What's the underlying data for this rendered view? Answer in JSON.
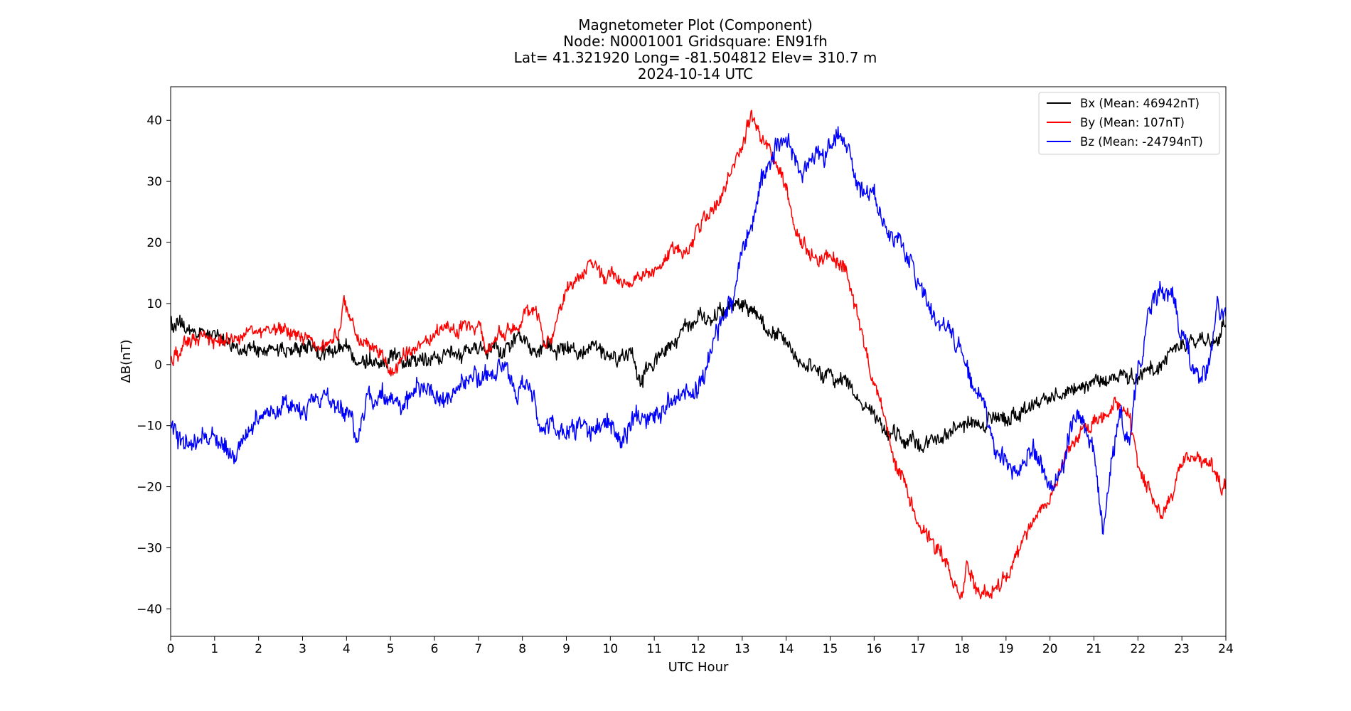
{
  "chart_data": {
    "type": "line",
    "title_lines": [
      "Magnetometer Plot (Component)",
      "Node:  N0001001     Gridsquare:  EN91fh",
      "Lat= 41.321920    Long= -81.504812    Elev= 310.7 m",
      "2024-10-14  UTC"
    ],
    "xlabel": "UTC Hour",
    "ylabel": "ΔB(nT)",
    "xlim": [
      0,
      24
    ],
    "ylim": [
      -44.5,
      45.5
    ],
    "x_ticks": [
      0,
      1,
      2,
      3,
      4,
      5,
      6,
      7,
      8,
      9,
      10,
      11,
      12,
      13,
      14,
      15,
      16,
      17,
      18,
      19,
      20,
      21,
      22,
      23,
      24
    ],
    "y_ticks": [
      -40,
      -30,
      -20,
      -10,
      0,
      10,
      20,
      30,
      40
    ],
    "y_tick_labels": [
      "−40",
      "−30",
      "−20",
      "−10",
      "0",
      "10",
      "20",
      "30",
      "40"
    ],
    "grid": false,
    "legend_position": "top-right",
    "series": [
      {
        "name": "Bx (Mean: 46942nT)",
        "color": "#000000",
        "noise": 1.2,
        "points": [
          [
            0,
            7
          ],
          [
            0.5,
            5
          ],
          [
            1,
            5
          ],
          [
            1.5,
            3
          ],
          [
            2,
            2
          ],
          [
            2.5,
            2.5
          ],
          [
            3,
            2.5
          ],
          [
            3.5,
            2.5
          ],
          [
            4,
            2
          ],
          [
            4.5,
            1
          ],
          [
            5,
            1.5
          ],
          [
            5.5,
            1.5
          ],
          [
            6,
            1
          ],
          [
            6.5,
            1.5
          ],
          [
            7,
            2
          ],
          [
            7.5,
            2.5
          ],
          [
            8,
            4.5
          ],
          [
            8.5,
            3
          ],
          [
            9,
            2
          ],
          [
            9.5,
            1.5
          ],
          [
            10,
            1.5
          ],
          [
            10.5,
            1.5
          ],
          [
            10.7,
            -2
          ],
          [
            11,
            1
          ],
          [
            11.5,
            4
          ],
          [
            12,
            7.5
          ],
          [
            12.5,
            8.5
          ],
          [
            13,
            9.5
          ],
          [
            13.3,
            9
          ],
          [
            13.5,
            6
          ],
          [
            14,
            3
          ],
          [
            14.5,
            0
          ],
          [
            15,
            -2
          ],
          [
            15.5,
            -4
          ],
          [
            16,
            -9
          ],
          [
            16.5,
            -12
          ],
          [
            17,
            -13
          ],
          [
            17.5,
            -12
          ],
          [
            18,
            -10
          ],
          [
            18.5,
            -10
          ],
          [
            19,
            -9
          ],
          [
            19.5,
            -7
          ],
          [
            20,
            -5
          ],
          [
            20.5,
            -4
          ],
          [
            21,
            -3
          ],
          [
            21.5,
            -2
          ],
          [
            21.8,
            -3
          ],
          [
            22,
            -2
          ],
          [
            22.5,
            0
          ],
          [
            23,
            3
          ],
          [
            23.5,
            4.5
          ],
          [
            23.8,
            4
          ],
          [
            24,
            7
          ]
        ]
      },
      {
        "name": "By (Mean: 107nT)",
        "color": "#ff0000",
        "noise": 1.1,
        "points": [
          [
            0,
            1
          ],
          [
            0.5,
            4
          ],
          [
            1,
            4
          ],
          [
            1.5,
            4.5
          ],
          [
            2,
            6
          ],
          [
            2.5,
            6
          ],
          [
            3,
            4.5
          ],
          [
            3.5,
            3
          ],
          [
            3.8,
            5
          ],
          [
            3.95,
            11
          ],
          [
            4.1,
            8
          ],
          [
            4.3,
            4
          ],
          [
            4.5,
            3
          ],
          [
            4.8,
            1.5
          ],
          [
            5,
            -2
          ],
          [
            5.2,
            1
          ],
          [
            5.5,
            2
          ],
          [
            6,
            5.5
          ],
          [
            6.5,
            6
          ],
          [
            7,
            6
          ],
          [
            7.2,
            3
          ],
          [
            7.5,
            5
          ],
          [
            8,
            7
          ],
          [
            8.3,
            9
          ],
          [
            8.4,
            7
          ],
          [
            8.5,
            3
          ],
          [
            8.7,
            6
          ],
          [
            9,
            12
          ],
          [
            9.5,
            16
          ],
          [
            10,
            15
          ],
          [
            10.3,
            13
          ],
          [
            10.6,
            14
          ],
          [
            11,
            16
          ],
          [
            11.4,
            19
          ],
          [
            11.8,
            18
          ],
          [
            12,
            22
          ],
          [
            12.5,
            28
          ],
          [
            13,
            36
          ],
          [
            13.2,
            41
          ],
          [
            13.5,
            36
          ],
          [
            13.8,
            32
          ],
          [
            14,
            29
          ],
          [
            14.2,
            22
          ],
          [
            14.5,
            18
          ],
          [
            15,
            17
          ],
          [
            15.3,
            16
          ],
          [
            15.5,
            12
          ],
          [
            15.8,
            3
          ],
          [
            16,
            -3
          ],
          [
            16.5,
            -16
          ],
          [
            17,
            -26
          ],
          [
            17.5,
            -30
          ],
          [
            17.8,
            -36
          ],
          [
            18,
            -38
          ],
          [
            18.1,
            -33
          ],
          [
            18.3,
            -36
          ],
          [
            18.6,
            -38
          ],
          [
            19,
            -35
          ],
          [
            19.5,
            -27
          ],
          [
            20,
            -22
          ],
          [
            20.5,
            -12
          ],
          [
            21,
            -9
          ],
          [
            21.5,
            -7
          ],
          [
            21.8,
            -8
          ],
          [
            22,
            -17
          ],
          [
            22.3,
            -21
          ],
          [
            22.5,
            -25
          ],
          [
            22.8,
            -21
          ],
          [
            23,
            -16
          ],
          [
            23.3,
            -15
          ],
          [
            23.7,
            -17
          ],
          [
            23.9,
            -21
          ],
          [
            24,
            -19
          ]
        ]
      },
      {
        "name": "Bz (Mean: -24794nT)",
        "color": "#0000ff",
        "noise": 1.5,
        "points": [
          [
            0,
            -10
          ],
          [
            0.2,
            -12
          ],
          [
            0.5,
            -14
          ],
          [
            1,
            -12
          ],
          [
            1.5,
            -15
          ],
          [
            2,
            -8
          ],
          [
            2.5,
            -7
          ],
          [
            3,
            -8
          ],
          [
            3.5,
            -5
          ],
          [
            4,
            -9
          ],
          [
            4.2,
            -12
          ],
          [
            4.5,
            -5
          ],
          [
            5,
            -6
          ],
          [
            5.5,
            -5
          ],
          [
            6,
            -5
          ],
          [
            6.5,
            -4
          ],
          [
            7,
            -2
          ],
          [
            7.3,
            -2
          ],
          [
            7.6,
            0
          ],
          [
            7.8,
            -3
          ],
          [
            8,
            -3
          ],
          [
            8.2,
            -5
          ],
          [
            8.5,
            -12
          ],
          [
            8.7,
            -10
          ],
          [
            9,
            -10
          ],
          [
            9.5,
            -11
          ],
          [
            10,
            -9
          ],
          [
            10.2,
            -14
          ],
          [
            10.5,
            -9
          ],
          [
            11,
            -8
          ],
          [
            11.5,
            -6
          ],
          [
            12,
            -4
          ],
          [
            12.5,
            6
          ],
          [
            12.8,
            10
          ],
          [
            13,
            18
          ],
          [
            13.5,
            30
          ],
          [
            13.8,
            35
          ],
          [
            14,
            37
          ],
          [
            14.3,
            32
          ],
          [
            14.7,
            34
          ],
          [
            15,
            35
          ],
          [
            15.2,
            37
          ],
          [
            15.5,
            33
          ],
          [
            15.8,
            28
          ],
          [
            16,
            27
          ],
          [
            16.5,
            20
          ],
          [
            17,
            14
          ],
          [
            17.5,
            6
          ],
          [
            18,
            3
          ],
          [
            18.2,
            -3
          ],
          [
            18.5,
            -7
          ],
          [
            18.8,
            -14
          ],
          [
            19,
            -16
          ],
          [
            19.3,
            -18
          ],
          [
            19.6,
            -15
          ],
          [
            19.8,
            -17
          ],
          [
            20,
            -19
          ],
          [
            20.3,
            -16
          ],
          [
            20.6,
            -7
          ],
          [
            21,
            -14
          ],
          [
            21.2,
            -27
          ],
          [
            21.4,
            -17
          ],
          [
            21.6,
            -9
          ],
          [
            21.8,
            -12
          ],
          [
            22,
            -2
          ],
          [
            22.3,
            9
          ],
          [
            22.5,
            12
          ],
          [
            22.8,
            10
          ],
          [
            23,
            5
          ],
          [
            23.3,
            -2
          ],
          [
            23.6,
            -1
          ],
          [
            23.8,
            9
          ],
          [
            24,
            8
          ]
        ]
      }
    ]
  }
}
